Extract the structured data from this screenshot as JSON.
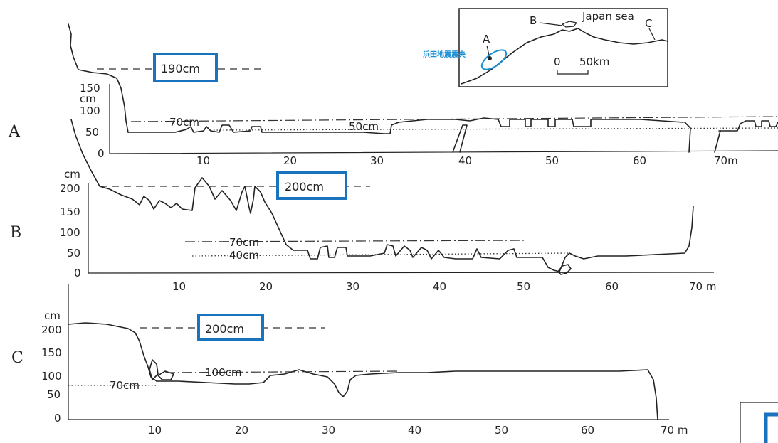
{
  "rows": [
    {
      "label": "A",
      "y_unit": "cm",
      "y_ticks": [
        "150",
        "100",
        "50",
        "0"
      ],
      "x_ticks": [
        "10",
        "20",
        "30",
        "40",
        "50",
        "60",
        "70m"
      ],
      "lines": {
        "dash": "190cm",
        "dashdot": "70cm",
        "dotted": "50cm"
      }
    },
    {
      "label": "B",
      "y_unit": "cm",
      "y_ticks": [
        "200",
        "150",
        "100",
        "50",
        "0"
      ],
      "x_ticks": [
        "10",
        "20",
        "30",
        "40",
        "50",
        "60",
        "70 m"
      ],
      "lines": {
        "dash": "200cm",
        "dashdot": "70cm",
        "dotted": "40cm"
      }
    },
    {
      "label": "C",
      "y_unit": "cm",
      "y_ticks": [
        "200",
        "150",
        "100",
        "50",
        "0"
      ],
      "x_ticks": [
        "10",
        "20",
        "30",
        "40",
        "50",
        "60",
        "70 m"
      ],
      "lines": {
        "dash": "200cm",
        "dashdot": "100cm",
        "dotted": "70cm"
      }
    }
  ],
  "map": {
    "labels": {
      "a": "A",
      "b": "B",
      "c": "C"
    },
    "sea": "Japan sea",
    "scale_zero": "0",
    "scale_label": "50km",
    "epicenter": "浜田地震震央"
  },
  "colors": {
    "highlight": "#1a73bf",
    "epicenter": "#1a8fd6"
  }
}
